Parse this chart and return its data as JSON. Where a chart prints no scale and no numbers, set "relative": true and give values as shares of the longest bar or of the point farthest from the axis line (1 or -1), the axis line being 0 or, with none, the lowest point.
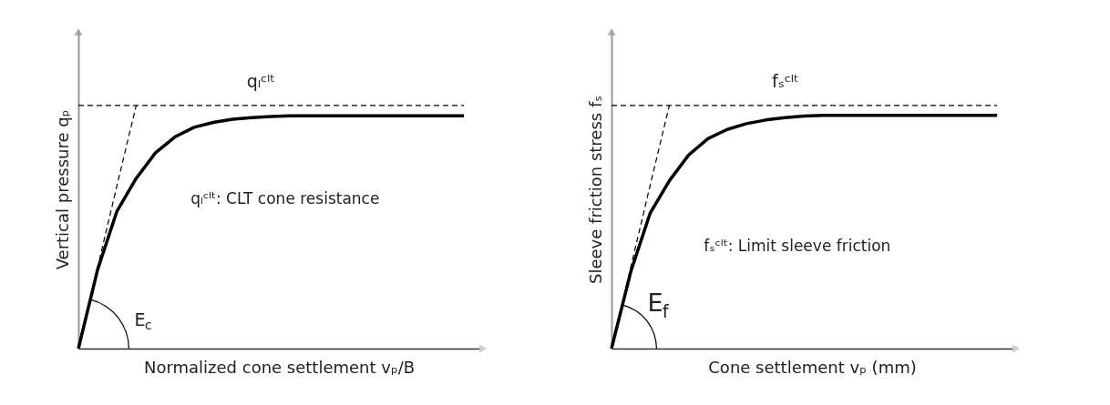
{
  "chart_data": [
    {
      "type": "line",
      "relative": true,
      "tick_labels": false,
      "grid": false,
      "xlabel": "Normalized cone settlement vₚ/B",
      "ylabel": "Vertical pressure qₚ",
      "categories": [
        null,
        null,
        null,
        null,
        null,
        null,
        null,
        null,
        null,
        null,
        null,
        null,
        null,
        null,
        null,
        null,
        null,
        null,
        null,
        null,
        null
      ],
      "series": [
        {
          "color": "#000000",
          "values": [
            0,
            0.325,
            0.565,
            0.7,
            0.805,
            0.87,
            0.91,
            0.93,
            0.943,
            0.95,
            0.954,
            0.957,
            0.957,
            0.957,
            0.957,
            0.957,
            0.957,
            0.957,
            0.957,
            0.957,
            0.957
          ]
        },
        {
          "color": "#000000",
          "line_style": "dashed",
          "values": [
            0,
            0.335,
            0.67,
            1,
            null,
            null,
            null,
            null,
            null,
            null,
            null,
            null,
            null,
            null,
            null,
            null,
            null,
            null,
            null,
            null,
            null
          ]
        },
        {
          "name": "qₗᶜˡᵗ",
          "color": "#000000",
          "line_style": "dashed",
          "values": [
            1,
            1,
            1,
            1,
            1,
            1,
            1,
            1,
            1,
            1,
            1,
            1,
            1,
            1,
            1,
            1,
            1,
            1,
            1,
            1,
            1
          ]
        }
      ],
      "annotations": [
        "qₗᶜˡᵗ: CLT cone resistance",
        "E$_{c}$"
      ]
    },
    {
      "type": "line",
      "relative": true,
      "tick_labels": false,
      "grid": false,
      "xlabel": "Cone settlement vₚ (mm)",
      "ylabel": "Sleeve friction stress fₛ",
      "categories": [
        null,
        null,
        null,
        null,
        null,
        null,
        null,
        null,
        null,
        null,
        null,
        null,
        null,
        null,
        null,
        null,
        null,
        null,
        null,
        null,
        null
      ],
      "series": [
        {
          "color": "#000000",
          "values": [
            0,
            0.316,
            0.556,
            0.69,
            0.796,
            0.863,
            0.901,
            0.925,
            0.94,
            0.95,
            0.956,
            0.959,
            0.959,
            0.959,
            0.959,
            0.959,
            0.959,
            0.959,
            0.959,
            0.959,
            0.959
          ]
        },
        {
          "color": "#000000",
          "line_style": "dashed",
          "values": [
            0,
            0.335,
            0.67,
            1,
            null,
            null,
            null,
            null,
            null,
            null,
            null,
            null,
            null,
            null,
            null,
            null,
            null,
            null,
            null,
            null,
            null
          ]
        },
        {
          "name": "fₛᶜˡᵗ",
          "color": "#000000",
          "line_style": "dashed",
          "values": [
            1,
            1,
            1,
            1,
            1,
            1,
            1,
            1,
            1,
            1,
            1,
            1,
            1,
            1,
            1,
            1,
            1,
            1,
            1,
            1,
            1
          ]
        }
      ],
      "annotations": [
        "fₛᶜˡᵗ: Limit sleeve friction",
        "E$_{f}$"
      ]
    }
  ]
}
